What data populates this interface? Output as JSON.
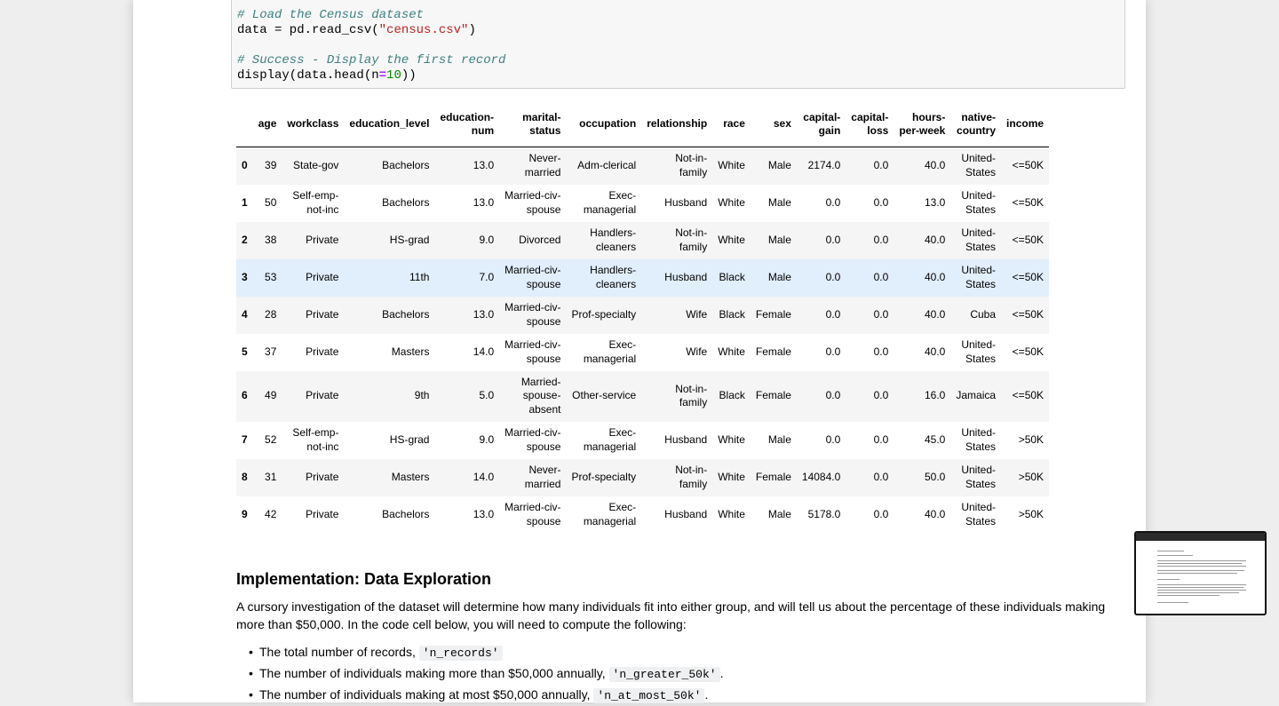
{
  "code": {
    "comment1": "# Load the Census dataset",
    "line1_pre": "data = pd.read_csv(",
    "line1_str": "\"census.csv\"",
    "line1_post": ")",
    "comment2": "# Success - Display the first record",
    "line2_pre": "display(data.head(n",
    "line2_op": "=",
    "line2_num": "10",
    "line2_post": "))"
  },
  "table": {
    "columns": [
      "",
      "age",
      "workclass",
      "education_level",
      "education-\nnum",
      "marital-\nstatus",
      "occupation",
      "relationship",
      "race",
      "sex",
      "capital-\ngain",
      "capital-\nloss",
      "hours-\nper-week",
      "native-\ncountry",
      "income"
    ],
    "rows": [
      [
        "0",
        "39",
        "State-gov",
        "Bachelors",
        "13.0",
        "Never-\nmarried",
        "Adm-clerical",
        "Not-in-\nfamily",
        "White",
        "Male",
        "2174.0",
        "0.0",
        "40.0",
        "United-\nStates",
        "<=50K"
      ],
      [
        "1",
        "50",
        "Self-emp-\nnot-inc",
        "Bachelors",
        "13.0",
        "Married-civ-\nspouse",
        "Exec-\nmanagerial",
        "Husband",
        "White",
        "Male",
        "0.0",
        "0.0",
        "13.0",
        "United-\nStates",
        "<=50K"
      ],
      [
        "2",
        "38",
        "Private",
        "HS-grad",
        "9.0",
        "Divorced",
        "Handlers-\ncleaners",
        "Not-in-\nfamily",
        "White",
        "Male",
        "0.0",
        "0.0",
        "40.0",
        "United-\nStates",
        "<=50K"
      ],
      [
        "3",
        "53",
        "Private",
        "11th",
        "7.0",
        "Married-civ-\nspouse",
        "Handlers-\ncleaners",
        "Husband",
        "Black",
        "Male",
        "0.0",
        "0.0",
        "40.0",
        "United-\nStates",
        "<=50K"
      ],
      [
        "4",
        "28",
        "Private",
        "Bachelors",
        "13.0",
        "Married-civ-\nspouse",
        "Prof-specialty",
        "Wife",
        "Black",
        "Female",
        "0.0",
        "0.0",
        "40.0",
        "Cuba",
        "<=50K"
      ],
      [
        "5",
        "37",
        "Private",
        "Masters",
        "14.0",
        "Married-civ-\nspouse",
        "Exec-\nmanagerial",
        "Wife",
        "White",
        "Female",
        "0.0",
        "0.0",
        "40.0",
        "United-\nStates",
        "<=50K"
      ],
      [
        "6",
        "49",
        "Private",
        "9th",
        "5.0",
        "Married-\nspouse-\nabsent",
        "Other-service",
        "Not-in-\nfamily",
        "Black",
        "Female",
        "0.0",
        "0.0",
        "16.0",
        "Jamaica",
        "<=50K"
      ],
      [
        "7",
        "52",
        "Self-emp-\nnot-inc",
        "HS-grad",
        "9.0",
        "Married-civ-\nspouse",
        "Exec-\nmanagerial",
        "Husband",
        "White",
        "Male",
        "0.0",
        "0.0",
        "45.0",
        "United-\nStates",
        ">50K"
      ],
      [
        "8",
        "31",
        "Private",
        "Masters",
        "14.0",
        "Never-\nmarried",
        "Prof-specialty",
        "Not-in-\nfamily",
        "White",
        "Female",
        "14084.0",
        "0.0",
        "50.0",
        "United-\nStates",
        ">50K"
      ],
      [
        "9",
        "42",
        "Private",
        "Bachelors",
        "13.0",
        "Married-civ-\nspouse",
        "Exec-\nmanagerial",
        "Husband",
        "White",
        "Male",
        "5178.0",
        "0.0",
        "40.0",
        "United-\nStates",
        ">50K"
      ]
    ],
    "highlighted_row": 3
  },
  "markdown": {
    "heading": "Implementation: Data Exploration",
    "paragraph": "A cursory investigation of the dataset will determine how many individuals fit into either group, and will tell us about the percentage of these individuals making more than $50,000. In the code cell below, you will need to compute the following:",
    "bullets": [
      {
        "text": "The total number of records, ",
        "code": "'n_records'",
        "end": ""
      },
      {
        "text": "The number of individuals making more than $50,000 annually, ",
        "code": "'n_greater_50k'",
        "end": "."
      },
      {
        "text": "The number of individuals making at most $50,000 annually, ",
        "code": "'n_at_most_50k'",
        "end": "."
      }
    ]
  },
  "colors": {
    "comment": "#408080",
    "string": "#ba2121",
    "number": "#008800",
    "row_highlight": "#e1eefb"
  }
}
